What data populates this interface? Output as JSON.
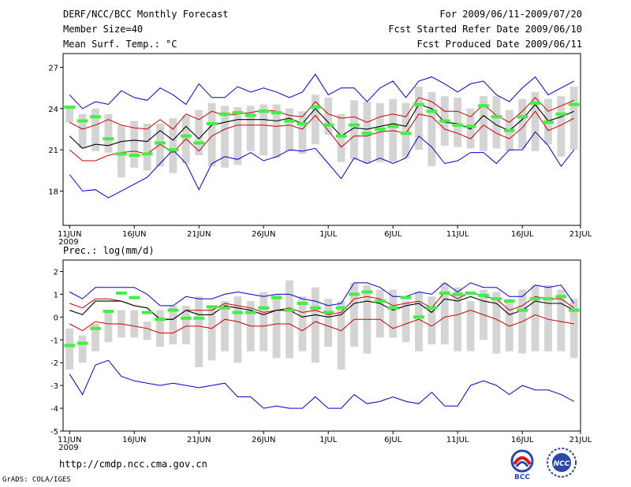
{
  "header": {
    "line1_left": "DERF/NCC/BCC Monthly Forecast",
    "line2_left": "Member Size=40",
    "line3_left": "Mean Surf. Temp.: °C",
    "line1_right": "For 2009/06/11-2009/07/20",
    "line2_right": "Fcst Started Refer Date 2009/06/10",
    "line3_right": "Fcst Produced Date 2009/06/11"
  },
  "colors": {
    "envelope": "#0000cc",
    "spread": "#cc0000",
    "mean": "#000000",
    "box": "#d4d4d4",
    "marker": "#44ee44"
  },
  "chart_data": [
    {
      "type": "box-range",
      "title": "Mean Surf. Temp.: °C",
      "x_tick_labels": [
        "11JUN",
        "16JUN",
        "21JUN",
        "26JUN",
        "1JUL",
        "6JUL",
        "11JUL",
        "16JUL",
        "21JUL"
      ],
      "x_year_label": "2009",
      "ylim": [
        15.5,
        28
      ],
      "y_ticks": [
        18,
        21,
        24,
        27
      ],
      "days": 40,
      "series": [
        {
          "name": "max",
          "values": [
            25.0,
            24.0,
            24.5,
            24.3,
            25.3,
            24.8,
            24.6,
            25.5,
            25.0,
            24.3,
            25.8,
            24.8,
            24.8,
            25.6,
            25.2,
            25.5,
            25.2,
            24.8,
            25.2,
            26.5,
            25.0,
            25.5,
            25.5,
            24.5,
            25.5,
            26.0,
            24.8,
            26.0,
            26.3,
            25.8,
            25.2,
            25.8,
            26.0,
            25.0,
            24.5,
            25.5,
            26.3,
            25.0,
            25.5,
            26.0
          ]
        },
        {
          "name": "upper",
          "values": [
            23.0,
            22.5,
            22.8,
            23.2,
            22.8,
            22.6,
            22.5,
            23.2,
            22.5,
            23.6,
            23.2,
            23.8,
            23.5,
            23.6,
            23.7,
            23.9,
            23.8,
            23.5,
            23.4,
            24.5,
            23.6,
            23.3,
            23.4,
            23.0,
            23.4,
            23.6,
            23.4,
            24.8,
            24.5,
            23.8,
            23.8,
            23.4,
            24.3,
            23.5,
            23.0,
            23.8,
            24.8,
            23.8,
            24.2,
            24.6
          ]
        },
        {
          "name": "mean",
          "values": [
            22.0,
            21.1,
            21.4,
            21.3,
            21.6,
            21.7,
            21.6,
            22.4,
            21.7,
            22.7,
            21.8,
            22.8,
            23.0,
            23.2,
            23.2,
            23.2,
            23.1,
            23.3,
            22.9,
            24.0,
            23.0,
            22.0,
            22.6,
            22.5,
            22.7,
            22.9,
            22.7,
            24.3,
            24.0,
            23.0,
            22.9,
            22.5,
            23.5,
            22.8,
            22.4,
            23.2,
            24.3,
            23.1,
            23.4,
            23.8
          ]
        },
        {
          "name": "lower",
          "values": [
            21.0,
            20.2,
            20.2,
            20.6,
            20.8,
            20.9,
            20.7,
            21.4,
            20.8,
            21.8,
            20.9,
            22.0,
            22.5,
            22.8,
            22.8,
            22.8,
            22.7,
            22.8,
            22.5,
            23.5,
            22.4,
            21.2,
            22.0,
            22.0,
            22.3,
            22.4,
            22.2,
            23.6,
            23.4,
            22.5,
            22.2,
            21.8,
            22.8,
            22.2,
            21.8,
            22.6,
            23.8,
            22.4,
            22.8,
            23.3
          ]
        },
        {
          "name": "min",
          "values": [
            19.2,
            18.0,
            18.1,
            17.5,
            18.0,
            18.5,
            19.0,
            20.0,
            21.0,
            20.0,
            18.1,
            20.0,
            20.5,
            20.3,
            20.8,
            20.2,
            20.5,
            21.0,
            20.9,
            21.1,
            20.0,
            18.9,
            20.4,
            20.0,
            20.4,
            20.0,
            20.4,
            22.0,
            21.2,
            20.0,
            20.2,
            20.8,
            20.8,
            20.0,
            21.0,
            21.0,
            22.3,
            21.3,
            19.8,
            21.0
          ]
        },
        {
          "name": "box_top",
          "values": [
            24.0,
            23.6,
            24.0,
            23.6,
            22.8,
            23.1,
            22.9,
            22.9,
            23.3,
            23.5,
            23.9,
            24.4,
            24.2,
            24.1,
            24.2,
            24.3,
            24.3,
            24.0,
            23.8,
            25.0,
            24.8,
            23.6,
            24.6,
            24.5,
            24.4,
            24.7,
            24.4,
            25.6,
            25.2,
            24.9,
            24.8,
            24.0,
            24.9,
            24.9,
            23.9,
            24.7,
            25.2,
            24.7,
            24.9,
            25.6
          ]
        },
        {
          "name": "box_bottom",
          "values": [
            23.0,
            21.1,
            20.9,
            20.8,
            19.0,
            19.7,
            19.5,
            19.8,
            19.3,
            20.0,
            20.6,
            19.8,
            19.7,
            19.9,
            20.9,
            20.6,
            20.4,
            20.9,
            20.7,
            21.4,
            22.1,
            20.1,
            20.3,
            20.0,
            20.1,
            20.1,
            20.4,
            21.0,
            19.8,
            21.3,
            21.2,
            21.1,
            20.9,
            21.1,
            20.9,
            21.1,
            20.9,
            21.4,
            20.5,
            21.0
          ]
        },
        {
          "name": "marker",
          "values": [
            24.1,
            23.1,
            23.4,
            21.8,
            20.7,
            20.6,
            20.7,
            21.5,
            21.0,
            22.0,
            21.5,
            22.9,
            23.6,
            23.7,
            23.5,
            23.8,
            23.7,
            23.1,
            22.9,
            24.1,
            22.8,
            22.0,
            22.8,
            22.2,
            22.5,
            22.7,
            22.2,
            24.3,
            23.8,
            23.1,
            22.8,
            22.7,
            24.2,
            23.4,
            22.4,
            23.4,
            24.4,
            23.0,
            23.6,
            24.3
          ]
        }
      ]
    },
    {
      "type": "box-range",
      "title": "Prec.: log(mm/d)",
      "x_tick_labels": [
        "11JUN",
        "16JUN",
        "21JUN",
        "26JUN",
        "1JUL",
        "6JUL",
        "11JUL",
        "16JUL",
        "21JUL"
      ],
      "x_year_label": "2009",
      "ylim": [
        -5,
        2.5
      ],
      "y_ticks": [
        -5,
        -4,
        -3,
        -2,
        -1,
        0,
        1,
        2
      ],
      "days": 40,
      "series": [
        {
          "name": "max",
          "values": [
            1.1,
            0.8,
            1.3,
            1.3,
            1.3,
            1.3,
            1.0,
            0.5,
            0.5,
            0.9,
            0.8,
            0.8,
            1.0,
            1.1,
            1.0,
            0.9,
            1.0,
            1.0,
            0.8,
            0.7,
            0.5,
            0.6,
            1.5,
            1.5,
            1.3,
            0.9,
            0.9,
            1.1,
            1.0,
            1.5,
            1.1,
            1.5,
            1.3,
            1.3,
            0.9,
            0.9,
            1.4,
            1.3,
            1.4,
            0.6
          ]
        },
        {
          "name": "upper",
          "values": [
            0.6,
            0.4,
            0.8,
            0.8,
            0.7,
            0.5,
            0.4,
            -0.1,
            -0.1,
            0.3,
            0.3,
            0.3,
            0.6,
            0.5,
            0.4,
            0.2,
            0.3,
            0.4,
            0.2,
            0.3,
            0.1,
            0.2,
            0.8,
            0.9,
            0.8,
            0.5,
            0.6,
            0.7,
            0.4,
            1.1,
            0.8,
            1.1,
            0.9,
            0.8,
            0.3,
            0.5,
            0.9,
            0.8,
            0.8,
            0.4
          ]
        },
        {
          "name": "mean",
          "values": [
            0.3,
            0.1,
            0.7,
            0.7,
            0.7,
            0.5,
            0.4,
            -0.1,
            -0.1,
            0.3,
            0.1,
            0.1,
            0.5,
            0.4,
            0.3,
            0.1,
            0.3,
            0.3,
            0.0,
            0.1,
            0.0,
            0.1,
            0.6,
            0.7,
            0.6,
            0.3,
            0.5,
            0.6,
            0.2,
            0.8,
            0.7,
            0.9,
            0.7,
            0.6,
            0.1,
            0.3,
            0.7,
            0.6,
            0.6,
            0.3
          ]
        },
        {
          "name": "lower",
          "values": [
            -0.3,
            -0.6,
            -0.2,
            -0.3,
            -0.3,
            -0.4,
            -0.5,
            -0.7,
            -0.7,
            -0.4,
            -0.4,
            -0.5,
            -0.1,
            -0.2,
            -0.4,
            -0.4,
            -0.3,
            -0.3,
            -0.6,
            -0.2,
            -0.4,
            -0.6,
            -0.1,
            -0.1,
            -0.1,
            -0.5,
            -0.3,
            -0.1,
            -0.4,
            0.0,
            0.1,
            0.3,
            0.1,
            -0.1,
            -0.4,
            -0.2,
            0.1,
            -0.1,
            -0.2,
            -0.3
          ]
        },
        {
          "name": "min",
          "values": [
            -2.5,
            -3.4,
            -2.1,
            -1.9,
            -2.6,
            -2.8,
            -2.9,
            -3.0,
            -2.9,
            -3.0,
            -3.1,
            -3.0,
            -2.9,
            -3.5,
            -3.5,
            -4.0,
            -3.9,
            -4.0,
            -4.0,
            -3.5,
            -4.0,
            -4.0,
            -3.4,
            -3.8,
            -3.7,
            -3.5,
            -3.7,
            -3.8,
            -3.3,
            -3.9,
            -3.9,
            -3.0,
            -2.8,
            -3.0,
            -3.4,
            -3.0,
            -3.2,
            -3.2,
            -3.4,
            -3.7
          ]
        },
        {
          "name": "box_top",
          "values": [
            -0.5,
            -0.8,
            -0.3,
            0.2,
            0.3,
            0.3,
            -0.2,
            0.3,
            0.5,
            0.5,
            0.9,
            0.5,
            0.7,
            0.9,
            0.7,
            1.1,
            1.0,
            1.6,
            0.9,
            1.3,
            0.8,
            0.7,
            1.5,
            1.4,
            1.2,
            1.2,
            0.7,
            1.1,
            0.9,
            1.5,
            1.3,
            0.7,
            1.2,
            1.1,
            0.8,
            1.2,
            1.4,
            1.4,
            1.2,
            0.8
          ]
        },
        {
          "name": "box_bottom",
          "values": [
            -2.3,
            -2.0,
            -1.5,
            -1.1,
            -0.9,
            -0.9,
            -1.0,
            -1.3,
            -1.2,
            -1.2,
            -2.2,
            -1.9,
            -1.5,
            -2.0,
            -1.5,
            -1.5,
            -1.8,
            -1.8,
            -1.5,
            -2.0,
            -1.3,
            -2.3,
            -1.3,
            -1.6,
            -0.9,
            -0.9,
            -1.1,
            -1.5,
            -1.2,
            -1.2,
            -1.5,
            -1.5,
            -1.0,
            -1.6,
            -1.5,
            -1.6,
            -1.5,
            -1.5,
            -1.5,
            -1.8
          ]
        },
        {
          "name": "marker",
          "values": [
            -1.25,
            -1.15,
            -0.5,
            0.25,
            1.05,
            0.85,
            0.2,
            -0.1,
            0.3,
            -0.05,
            -0.05,
            0.45,
            0.4,
            0.2,
            0.2,
            0.4,
            0.85,
            0.3,
            0.6,
            0.4,
            0.2,
            0.4,
            1.0,
            1.1,
            0.7,
            0.4,
            0.85,
            0.0,
            0.4,
            1.05,
            1.0,
            1.05,
            0.95,
            0.8,
            0.7,
            0.3,
            0.8,
            0.8,
            0.9,
            0.3
          ]
        }
      ]
    }
  ],
  "footer": {
    "url": "http://cmdp.ncc.cma.gov.cn",
    "credit": "GrADS: COLA/IGES",
    "logo_left_text": "BCC",
    "logo_right_text": "NCC"
  }
}
